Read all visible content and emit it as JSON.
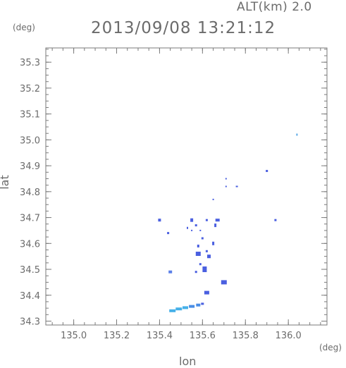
{
  "header": {
    "alt_label": "ALT(km) 2.0",
    "timestamp": "2013/09/08 13:21:12",
    "y_unit": "(deg)",
    "x_unit": "(deg)"
  },
  "chart_data": {
    "type": "scatter",
    "title": "2013/09/08 13:21:12",
    "subtitle": "ALT(km) 2.0",
    "xlabel": "lon",
    "ylabel": "lat",
    "xlim": [
      134.87,
      136.18
    ],
    "ylim": [
      34.285,
      35.355
    ],
    "x_ticks": [
      135.0,
      135.2,
      135.4,
      135.6,
      135.8,
      136.0
    ],
    "x_tick_labels": [
      "135.0",
      "135.2",
      "135.4",
      "135.6",
      "135.8",
      "136.0"
    ],
    "y_ticks": [
      34.3,
      34.4,
      34.5,
      34.6,
      34.7,
      34.8,
      34.9,
      35.0,
      35.1,
      35.2,
      35.3
    ],
    "y_tick_labels": [
      "34.3",
      "34.4",
      "34.5",
      "34.6",
      "34.7",
      "34.8",
      "34.9",
      "35.0",
      "35.1",
      "35.2",
      "35.3"
    ],
    "grid": false,
    "colors": {
      "low_value": "#45b0e8",
      "mid_value": "#4a5fe0",
      "high_value": "#6a6cf0"
    },
    "points": [
      {
        "x": 136.04,
        "y": 35.02,
        "w": 2,
        "h": 3,
        "c": "#5aa8e6"
      },
      {
        "x": 135.9,
        "y": 34.88,
        "w": 3,
        "h": 3,
        "c": "#4a5fe0"
      },
      {
        "x": 135.71,
        "y": 34.85,
        "w": 2,
        "h": 2,
        "c": "#4a5fe0"
      },
      {
        "x": 135.71,
        "y": 34.82,
        "w": 2,
        "h": 2,
        "c": "#4a5fe0"
      },
      {
        "x": 135.76,
        "y": 34.82,
        "w": 3,
        "h": 2,
        "c": "#4a5fe0"
      },
      {
        "x": 135.65,
        "y": 34.77,
        "w": 2,
        "h": 2,
        "c": "#4a5fe0"
      },
      {
        "x": 135.4,
        "y": 34.69,
        "w": 4,
        "h": 4,
        "c": "#4a5fe0"
      },
      {
        "x": 135.55,
        "y": 34.69,
        "w": 4,
        "h": 5,
        "c": "#4a5fe0"
      },
      {
        "x": 135.62,
        "y": 34.69,
        "w": 3,
        "h": 3,
        "c": "#4a5fe0"
      },
      {
        "x": 135.67,
        "y": 34.69,
        "w": 6,
        "h": 4,
        "c": "#4a5fe0"
      },
      {
        "x": 135.94,
        "y": 34.69,
        "w": 3,
        "h": 3,
        "c": "#4a5fe0"
      },
      {
        "x": 135.57,
        "y": 34.67,
        "w": 3,
        "h": 3,
        "c": "#4a5fe0"
      },
      {
        "x": 135.66,
        "y": 34.67,
        "w": 3,
        "h": 5,
        "c": "#4a5fe0"
      },
      {
        "x": 135.53,
        "y": 34.66,
        "w": 2,
        "h": 3,
        "c": "#4a5fe0"
      },
      {
        "x": 135.44,
        "y": 34.64,
        "w": 3,
        "h": 3,
        "c": "#4a5fe0"
      },
      {
        "x": 135.59,
        "y": 34.65,
        "w": 2,
        "h": 2,
        "c": "#4a5fe0"
      },
      {
        "x": 135.55,
        "y": 34.65,
        "w": 2,
        "h": 2,
        "c": "#4a5fe0"
      },
      {
        "x": 135.6,
        "y": 34.62,
        "w": 3,
        "h": 3,
        "c": "#4a5fe0"
      },
      {
        "x": 135.65,
        "y": 34.6,
        "w": 3,
        "h": 5,
        "c": "#4a5fe0"
      },
      {
        "x": 135.58,
        "y": 34.59,
        "w": 3,
        "h": 4,
        "c": "#4a5fe0"
      },
      {
        "x": 135.62,
        "y": 34.57,
        "w": 3,
        "h": 3,
        "c": "#4a5fe0"
      },
      {
        "x": 135.58,
        "y": 34.56,
        "w": 7,
        "h": 6,
        "c": "#4a5fe0"
      },
      {
        "x": 135.63,
        "y": 34.55,
        "w": 5,
        "h": 5,
        "c": "#4a5fe0"
      },
      {
        "x": 135.59,
        "y": 34.52,
        "w": 3,
        "h": 3,
        "c": "#4a5fe0"
      },
      {
        "x": 135.61,
        "y": 34.5,
        "w": 6,
        "h": 8,
        "c": "#4a5fe0"
      },
      {
        "x": 135.57,
        "y": 34.49,
        "w": 3,
        "h": 3,
        "c": "#4a5fe0"
      },
      {
        "x": 135.45,
        "y": 34.49,
        "w": 5,
        "h": 4,
        "c": "#5a7fe8"
      },
      {
        "x": 135.7,
        "y": 34.45,
        "w": 8,
        "h": 6,
        "c": "#4a5fe0"
      },
      {
        "x": 135.62,
        "y": 34.41,
        "w": 7,
        "h": 5,
        "c": "#4a5fe0"
      },
      {
        "x": 135.46,
        "y": 34.34,
        "w": 9,
        "h": 4,
        "c": "#45b0e8"
      },
      {
        "x": 135.49,
        "y": 34.347,
        "w": 9,
        "h": 4,
        "c": "#45b0e8"
      },
      {
        "x": 135.52,
        "y": 34.352,
        "w": 8,
        "h": 4,
        "c": "#45b0e8"
      },
      {
        "x": 135.55,
        "y": 34.357,
        "w": 8,
        "h": 4,
        "c": "#4a8ee6"
      },
      {
        "x": 135.58,
        "y": 34.362,
        "w": 6,
        "h": 4,
        "c": "#4a8ee6"
      },
      {
        "x": 135.6,
        "y": 34.367,
        "w": 4,
        "h": 3,
        "c": "#4a5fe0"
      }
    ]
  }
}
